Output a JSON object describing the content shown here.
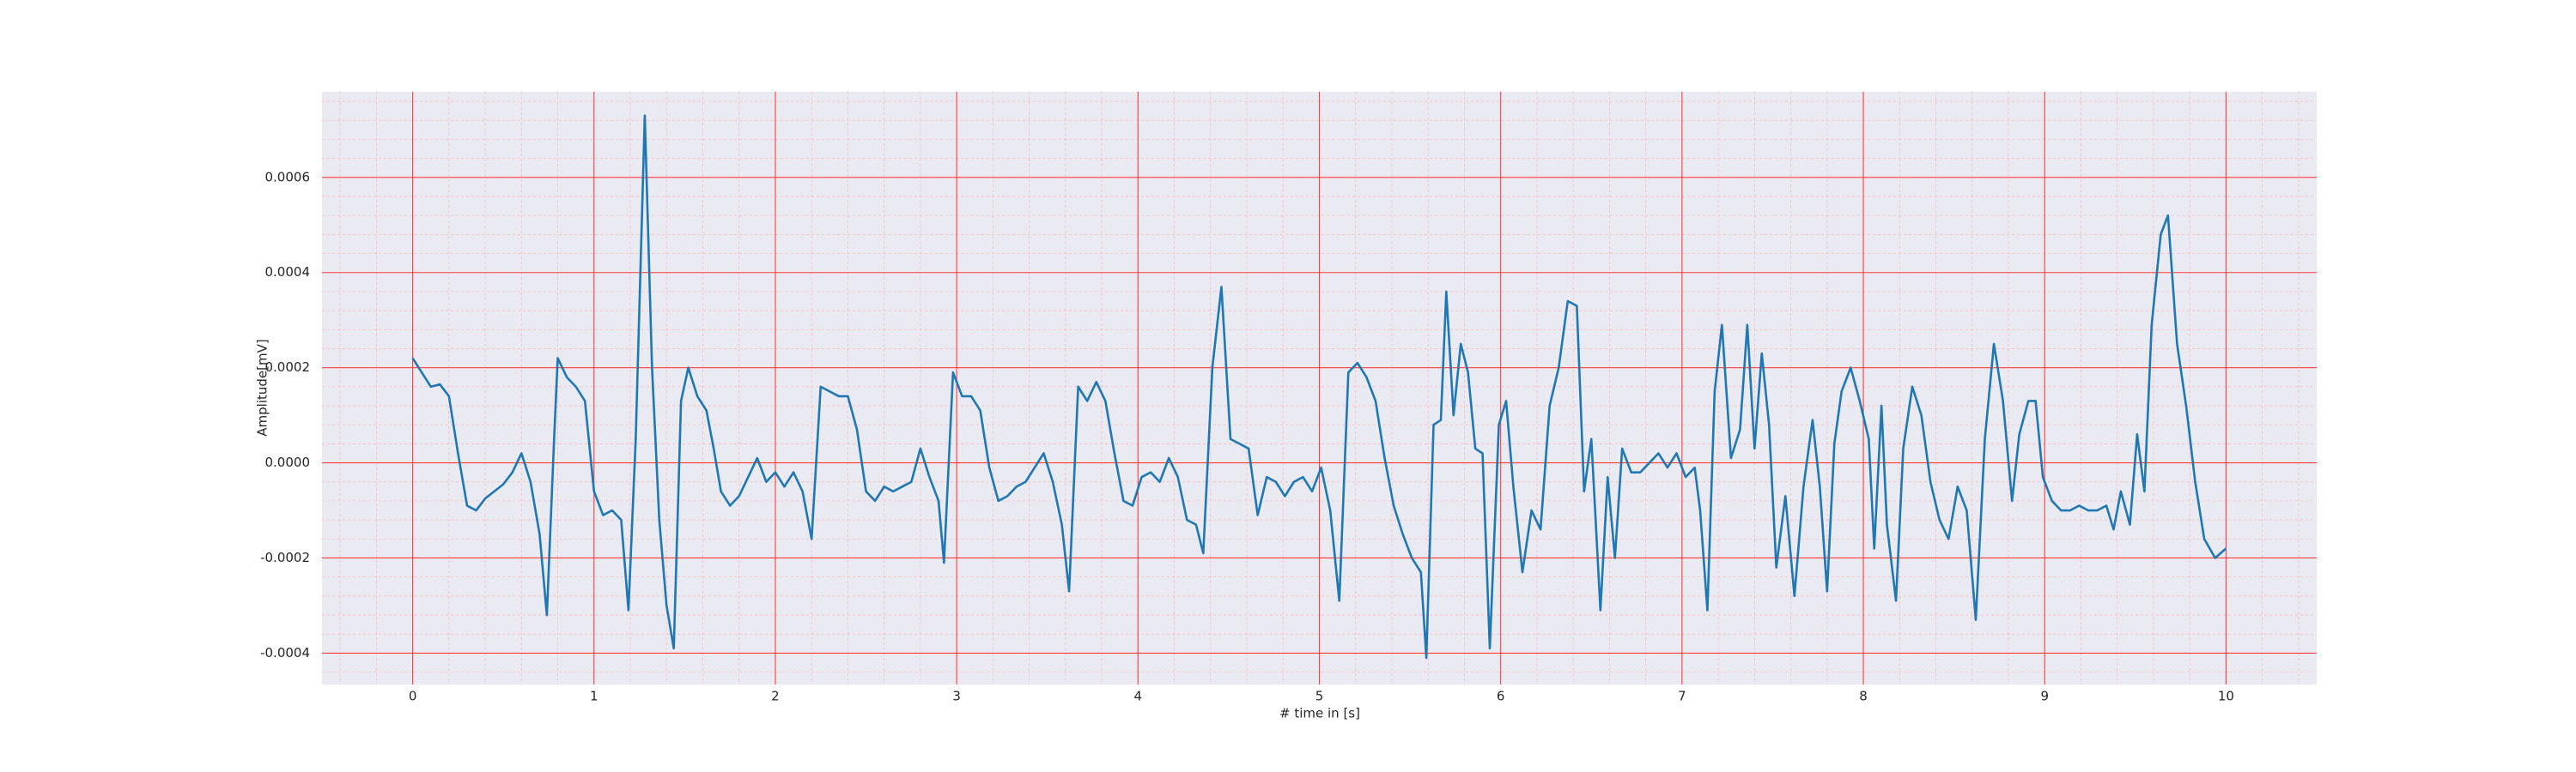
{
  "chart_data": {
    "type": "line",
    "xlabel": "# time in [s]",
    "ylabel": "Amplitude[mV]",
    "color": "#1f77b4",
    "xlim": [
      -0.5,
      10.5
    ],
    "xticks": [
      0,
      1,
      2,
      3,
      4,
      5,
      6,
      7,
      8,
      9,
      10
    ],
    "ylim": [
      -0.000466,
      0.00078
    ],
    "yticks": [
      -0.0004,
      -0.0002,
      {
        "value": 0,
        "label": "0.0000"
      },
      0.0002,
      0.0004,
      0.0006
    ],
    "grid": true,
    "minor_grid": true,
    "x": [
      0.0,
      0.05,
      0.1,
      0.15,
      0.2,
      0.25,
      0.3,
      0.35,
      0.4,
      0.45,
      0.5,
      0.55,
      0.6,
      0.65,
      0.7,
      0.74,
      0.78,
      0.8,
      0.85,
      0.9,
      0.95,
      1.0,
      1.05,
      1.1,
      1.15,
      1.19,
      1.23,
      1.28,
      1.32,
      1.36,
      1.4,
      1.44,
      1.48,
      1.52,
      1.57,
      1.62,
      1.66,
      1.7,
      1.75,
      1.8,
      1.85,
      1.9,
      1.95,
      2.0,
      2.05,
      2.1,
      2.15,
      2.2,
      2.25,
      2.3,
      2.35,
      2.4,
      2.45,
      2.5,
      2.55,
      2.6,
      2.65,
      2.7,
      2.75,
      2.8,
      2.85,
      2.9,
      2.93,
      2.98,
      3.03,
      3.08,
      3.13,
      3.18,
      3.23,
      3.28,
      3.33,
      3.38,
      3.43,
      3.48,
      3.53,
      3.58,
      3.62,
      3.67,
      3.72,
      3.77,
      3.82,
      3.87,
      3.92,
      3.97,
      4.02,
      4.07,
      4.12,
      4.17,
      4.22,
      4.27,
      4.32,
      4.36,
      4.41,
      4.46,
      4.51,
      4.56,
      4.61,
      4.66,
      4.71,
      4.76,
      4.81,
      4.86,
      4.91,
      4.96,
      5.01,
      5.06,
      5.11,
      5.16,
      5.21,
      5.26,
      5.31,
      5.36,
      5.41,
      5.46,
      5.51,
      5.56,
      5.59,
      5.63,
      5.67,
      5.7,
      5.74,
      5.78,
      5.82,
      5.86,
      5.9,
      5.94,
      5.99,
      6.03,
      6.07,
      6.12,
      6.17,
      6.22,
      6.27,
      6.32,
      6.37,
      6.42,
      6.46,
      6.5,
      6.55,
      6.59,
      6.63,
      6.67,
      6.72,
      6.77,
      6.82,
      6.87,
      6.92,
      6.97,
      7.02,
      7.07,
      7.1,
      7.14,
      7.18,
      7.22,
      7.27,
      7.32,
      7.36,
      7.4,
      7.44,
      7.48,
      7.52,
      7.57,
      7.62,
      7.67,
      7.72,
      7.76,
      7.8,
      7.84,
      7.88,
      7.93,
      7.98,
      8.03,
      8.06,
      8.1,
      8.13,
      8.18,
      8.22,
      8.27,
      8.32,
      8.37,
      8.42,
      8.47,
      8.52,
      8.57,
      8.62,
      8.67,
      8.72,
      8.77,
      8.82,
      8.86,
      8.91,
      8.95,
      8.99,
      9.04,
      9.09,
      9.14,
      9.19,
      9.24,
      9.29,
      9.34,
      9.38,
      9.42,
      9.47,
      9.51,
      9.55,
      9.59,
      9.64,
      9.68,
      9.73,
      9.78,
      9.83,
      9.88,
      9.94,
      10.0
    ],
    "values": [
      0.00022,
      0.00019,
      0.00016,
      0.000165,
      0.00014,
      2e-05,
      -9e-05,
      -0.0001,
      -7.5e-05,
      -6e-05,
      -4.5e-05,
      -2e-05,
      2e-05,
      -4e-05,
      -0.00015,
      -0.00032,
      5e-05,
      0.00022,
      0.00018,
      0.00016,
      0.00013,
      -6e-05,
      -0.00011,
      -0.0001,
      -0.00012,
      -0.00031,
      5e-05,
      0.00073,
      0.0002,
      -0.00012,
      -0.0003,
      -0.00039,
      0.00013,
      0.0002,
      0.00014,
      0.00011,
      3e-05,
      -6e-05,
      -9e-05,
      -7e-05,
      -3e-05,
      1e-05,
      -4e-05,
      -2e-05,
      -5e-05,
      -2e-05,
      -6e-05,
      -0.00016,
      0.00016,
      0.00015,
      0.00014,
      0.00014,
      7e-05,
      -6e-05,
      -8e-05,
      -5e-05,
      -6e-05,
      -5e-05,
      -4e-05,
      3e-05,
      -3e-05,
      -8e-05,
      -0.00021,
      0.00019,
      0.00014,
      0.00014,
      0.00011,
      -1e-05,
      -8e-05,
      -7e-05,
      -5e-05,
      -4e-05,
      -1e-05,
      2e-05,
      -4e-05,
      -0.00013,
      -0.00027,
      0.00016,
      0.00013,
      0.00017,
      0.00013,
      2e-05,
      -8e-05,
      -9e-05,
      -3e-05,
      -2e-05,
      -4e-05,
      1e-05,
      -3e-05,
      -0.00012,
      -0.00013,
      -0.00019,
      0.0002,
      0.00037,
      5e-05,
      4e-05,
      3e-05,
      -0.00011,
      -3e-05,
      -4e-05,
      -7e-05,
      -4e-05,
      -3e-05,
      -6e-05,
      -1e-05,
      -0.0001,
      -0.00029,
      0.00019,
      0.00021,
      0.00018,
      0.00013,
      1e-05,
      -9e-05,
      -0.00015,
      -0.0002,
      -0.00023,
      -0.00041,
      8e-05,
      9e-05,
      0.00036,
      0.0001,
      0.00025,
      0.00019,
      3e-05,
      2e-05,
      -0.00039,
      8e-05,
      0.00013,
      -5e-05,
      -0.00023,
      -0.0001,
      -0.00014,
      0.00012,
      0.0002,
      0.00034,
      0.00033,
      -6e-05,
      5e-05,
      -0.00031,
      -3e-05,
      -0.0002,
      3e-05,
      -2e-05,
      -2e-05,
      0.0,
      2e-05,
      -1e-05,
      2e-05,
      -3e-05,
      -1e-05,
      -0.0001,
      -0.00031,
      0.00015,
      0.00029,
      1e-05,
      7e-05,
      0.00029,
      3e-05,
      0.00023,
      8e-05,
      -0.00022,
      -7e-05,
      -0.00028,
      -5e-05,
      9e-05,
      -5e-05,
      -0.00027,
      4e-05,
      0.00015,
      0.0002,
      0.00013,
      5e-05,
      -0.00018,
      0.00012,
      -0.00013,
      -0.00029,
      3e-05,
      0.00016,
      0.0001,
      -4e-05,
      -0.00012,
      -0.00016,
      -5e-05,
      -0.0001,
      -0.00033,
      5e-05,
      0.00025,
      0.00013,
      -8e-05,
      6e-05,
      0.00013,
      0.00013,
      -3e-05,
      -8e-05,
      -0.0001,
      -0.0001,
      -9e-05,
      -0.0001,
      -0.0001,
      -9e-05,
      -0.00014,
      -6e-05,
      -0.00013,
      6e-05,
      -6e-05,
      0.00029,
      0.00048,
      0.00052,
      0.00025,
      0.00012,
      -4e-05,
      -0.00016,
      -0.0002,
      -0.00018
    ]
  }
}
